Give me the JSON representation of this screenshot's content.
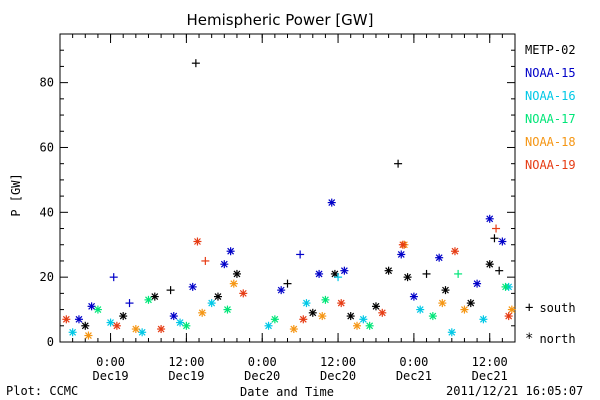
{
  "footer": {
    "plot_credit": "Plot: CCMC",
    "timestamp": "2011/12/21 16:05:07"
  },
  "markers": {
    "south": {
      "symbol": "+",
      "label": "south"
    },
    "north": {
      "symbol": "*",
      "label": "north"
    }
  },
  "chart_data": {
    "type": "scatter",
    "title": "Hemispheric Power [GW]",
    "xlabel": "Date and Time",
    "ylabel": "P [GW]",
    "xlim": [
      "2011-12-18T16:00",
      "2011-12-21T16:00"
    ],
    "ylim": [
      0,
      95
    ],
    "yticks": [
      0,
      20,
      40,
      60,
      80
    ],
    "grid": false,
    "legend_position": "right",
    "xticks": [
      {
        "time": "2011-12-19T00:00",
        "line1": "0:00",
        "line2": "Dec19"
      },
      {
        "time": "2011-12-19T12:00",
        "line1": "12:00",
        "line2": "Dec19"
      },
      {
        "time": "2011-12-20T00:00",
        "line1": "0:00",
        "line2": "Dec20"
      },
      {
        "time": "2011-12-20T12:00",
        "line1": "12:00",
        "line2": "Dec20"
      },
      {
        "time": "2011-12-21T00:00",
        "line1": "0:00",
        "line2": "Dec21"
      },
      {
        "time": "2011-12-21T12:00",
        "line1": "12:00",
        "line2": "Dec21"
      }
    ],
    "series": [
      {
        "name": "METP-02",
        "color": "#000000",
        "points": [
          {
            "t": "2011-12-18T20:00",
            "v": 5,
            "h": "north"
          },
          {
            "t": "2011-12-19T02:00",
            "v": 8,
            "h": "north"
          },
          {
            "t": "2011-12-19T07:00",
            "v": 14,
            "h": "north"
          },
          {
            "t": "2011-12-19T09:30",
            "v": 16,
            "h": "south"
          },
          {
            "t": "2011-12-19T13:30",
            "v": 86,
            "h": "south"
          },
          {
            "t": "2011-12-19T17:00",
            "v": 14,
            "h": "north"
          },
          {
            "t": "2011-12-19T20:00",
            "v": 21,
            "h": "north"
          },
          {
            "t": "2011-12-20T04:00",
            "v": 18,
            "h": "south"
          },
          {
            "t": "2011-12-20T08:00",
            "v": 9,
            "h": "north"
          },
          {
            "t": "2011-12-20T11:30",
            "v": 21,
            "h": "north"
          },
          {
            "t": "2011-12-20T14:00",
            "v": 8,
            "h": "north"
          },
          {
            "t": "2011-12-20T18:00",
            "v": 11,
            "h": "north"
          },
          {
            "t": "2011-12-20T20:00",
            "v": 22,
            "h": "north"
          },
          {
            "t": "2011-12-20T21:30",
            "v": 55,
            "h": "south"
          },
          {
            "t": "2011-12-20T23:00",
            "v": 20,
            "h": "north"
          },
          {
            "t": "2011-12-21T02:00",
            "v": 21,
            "h": "south"
          },
          {
            "t": "2011-12-21T05:00",
            "v": 16,
            "h": "north"
          },
          {
            "t": "2011-12-21T09:00",
            "v": 12,
            "h": "north"
          },
          {
            "t": "2011-12-21T12:00",
            "v": 24,
            "h": "north"
          },
          {
            "t": "2011-12-21T12:45",
            "v": 32,
            "h": "south"
          },
          {
            "t": "2011-12-21T13:30",
            "v": 22,
            "h": "south"
          }
        ]
      },
      {
        "name": "NOAA-15",
        "color": "#0000c8",
        "points": [
          {
            "t": "2011-12-18T19:00",
            "v": 7,
            "h": "north"
          },
          {
            "t": "2011-12-18T21:00",
            "v": 11,
            "h": "north"
          },
          {
            "t": "2011-12-19T00:30",
            "v": 20,
            "h": "south"
          },
          {
            "t": "2011-12-19T03:00",
            "v": 12,
            "h": "south"
          },
          {
            "t": "2011-12-19T10:00",
            "v": 8,
            "h": "north"
          },
          {
            "t": "2011-12-19T13:00",
            "v": 17,
            "h": "north"
          },
          {
            "t": "2011-12-19T18:00",
            "v": 24,
            "h": "north"
          },
          {
            "t": "2011-12-19T19:00",
            "v": 28,
            "h": "north"
          },
          {
            "t": "2011-12-20T03:00",
            "v": 16,
            "h": "north"
          },
          {
            "t": "2011-12-20T06:00",
            "v": 27,
            "h": "south"
          },
          {
            "t": "2011-12-20T09:00",
            "v": 21,
            "h": "north"
          },
          {
            "t": "2011-12-20T11:00",
            "v": 43,
            "h": "north"
          },
          {
            "t": "2011-12-20T13:00",
            "v": 22,
            "h": "north"
          },
          {
            "t": "2011-12-20T22:00",
            "v": 27,
            "h": "north"
          },
          {
            "t": "2011-12-21T00:00",
            "v": 14,
            "h": "north"
          },
          {
            "t": "2011-12-21T04:00",
            "v": 26,
            "h": "north"
          },
          {
            "t": "2011-12-21T10:00",
            "v": 18,
            "h": "north"
          },
          {
            "t": "2011-12-21T12:00",
            "v": 38,
            "h": "north"
          },
          {
            "t": "2011-12-21T14:00",
            "v": 31,
            "h": "north"
          }
        ]
      },
      {
        "name": "NOAA-16",
        "color": "#00c8e6",
        "points": [
          {
            "t": "2011-12-18T18:00",
            "v": 3,
            "h": "north"
          },
          {
            "t": "2011-12-19T00:00",
            "v": 6,
            "h": "north"
          },
          {
            "t": "2011-12-19T05:00",
            "v": 3,
            "h": "north"
          },
          {
            "t": "2011-12-19T11:00",
            "v": 6,
            "h": "north"
          },
          {
            "t": "2011-12-19T16:00",
            "v": 12,
            "h": "north"
          },
          {
            "t": "2011-12-20T01:00",
            "v": 5,
            "h": "north"
          },
          {
            "t": "2011-12-20T07:00",
            "v": 12,
            "h": "north"
          },
          {
            "t": "2011-12-20T12:00",
            "v": 20,
            "h": "south"
          },
          {
            "t": "2011-12-20T16:00",
            "v": 7,
            "h": "north"
          },
          {
            "t": "2011-12-21T01:00",
            "v": 10,
            "h": "north"
          },
          {
            "t": "2011-12-21T06:00",
            "v": 3,
            "h": "north"
          },
          {
            "t": "2011-12-21T11:00",
            "v": 7,
            "h": "north"
          },
          {
            "t": "2011-12-21T15:00",
            "v": 17,
            "h": "north"
          }
        ]
      },
      {
        "name": "NOAA-17",
        "color": "#00e678",
        "points": [
          {
            "t": "2011-12-18T22:00",
            "v": 10,
            "h": "north"
          },
          {
            "t": "2011-12-19T06:00",
            "v": 13,
            "h": "north"
          },
          {
            "t": "2011-12-19T12:00",
            "v": 5,
            "h": "north"
          },
          {
            "t": "2011-12-19T18:30",
            "v": 10,
            "h": "north"
          },
          {
            "t": "2011-12-20T02:00",
            "v": 7,
            "h": "north"
          },
          {
            "t": "2011-12-20T10:00",
            "v": 13,
            "h": "north"
          },
          {
            "t": "2011-12-20T17:00",
            "v": 5,
            "h": "north"
          },
          {
            "t": "2011-12-21T03:00",
            "v": 8,
            "h": "north"
          },
          {
            "t": "2011-12-21T07:00",
            "v": 21,
            "h": "south"
          },
          {
            "t": "2011-12-21T14:30",
            "v": 17,
            "h": "north"
          }
        ]
      },
      {
        "name": "NOAA-18",
        "color": "#f59614",
        "points": [
          {
            "t": "2011-12-18T20:30",
            "v": 2,
            "h": "north"
          },
          {
            "t": "2011-12-19T04:00",
            "v": 4,
            "h": "north"
          },
          {
            "t": "2011-12-19T14:30",
            "v": 9,
            "h": "north"
          },
          {
            "t": "2011-12-19T19:30",
            "v": 18,
            "h": "north"
          },
          {
            "t": "2011-12-20T05:00",
            "v": 4,
            "h": "north"
          },
          {
            "t": "2011-12-20T09:30",
            "v": 8,
            "h": "north"
          },
          {
            "t": "2011-12-20T15:00",
            "v": 5,
            "h": "north"
          },
          {
            "t": "2011-12-20T22:30",
            "v": 30,
            "h": "north"
          },
          {
            "t": "2011-12-21T04:30",
            "v": 12,
            "h": "north"
          },
          {
            "t": "2011-12-21T08:00",
            "v": 10,
            "h": "north"
          },
          {
            "t": "2011-12-21T15:30",
            "v": 10,
            "h": "north"
          }
        ]
      },
      {
        "name": "NOAA-19",
        "color": "#e63c14",
        "points": [
          {
            "t": "2011-12-18T17:00",
            "v": 7,
            "h": "north"
          },
          {
            "t": "2011-12-19T01:00",
            "v": 5,
            "h": "north"
          },
          {
            "t": "2011-12-19T08:00",
            "v": 4,
            "h": "north"
          },
          {
            "t": "2011-12-19T13:45",
            "v": 31,
            "h": "north"
          },
          {
            "t": "2011-12-19T15:00",
            "v": 25,
            "h": "south"
          },
          {
            "t": "2011-12-19T21:00",
            "v": 15,
            "h": "north"
          },
          {
            "t": "2011-12-20T06:30",
            "v": 7,
            "h": "north"
          },
          {
            "t": "2011-12-20T12:30",
            "v": 12,
            "h": "north"
          },
          {
            "t": "2011-12-20T19:00",
            "v": 9,
            "h": "north"
          },
          {
            "t": "2011-12-20T22:15",
            "v": 30,
            "h": "north"
          },
          {
            "t": "2011-12-21T06:30",
            "v": 28,
            "h": "north"
          },
          {
            "t": "2011-12-21T13:00",
            "v": 35,
            "h": "south"
          },
          {
            "t": "2011-12-21T15:00",
            "v": 8,
            "h": "north"
          }
        ]
      }
    ]
  }
}
